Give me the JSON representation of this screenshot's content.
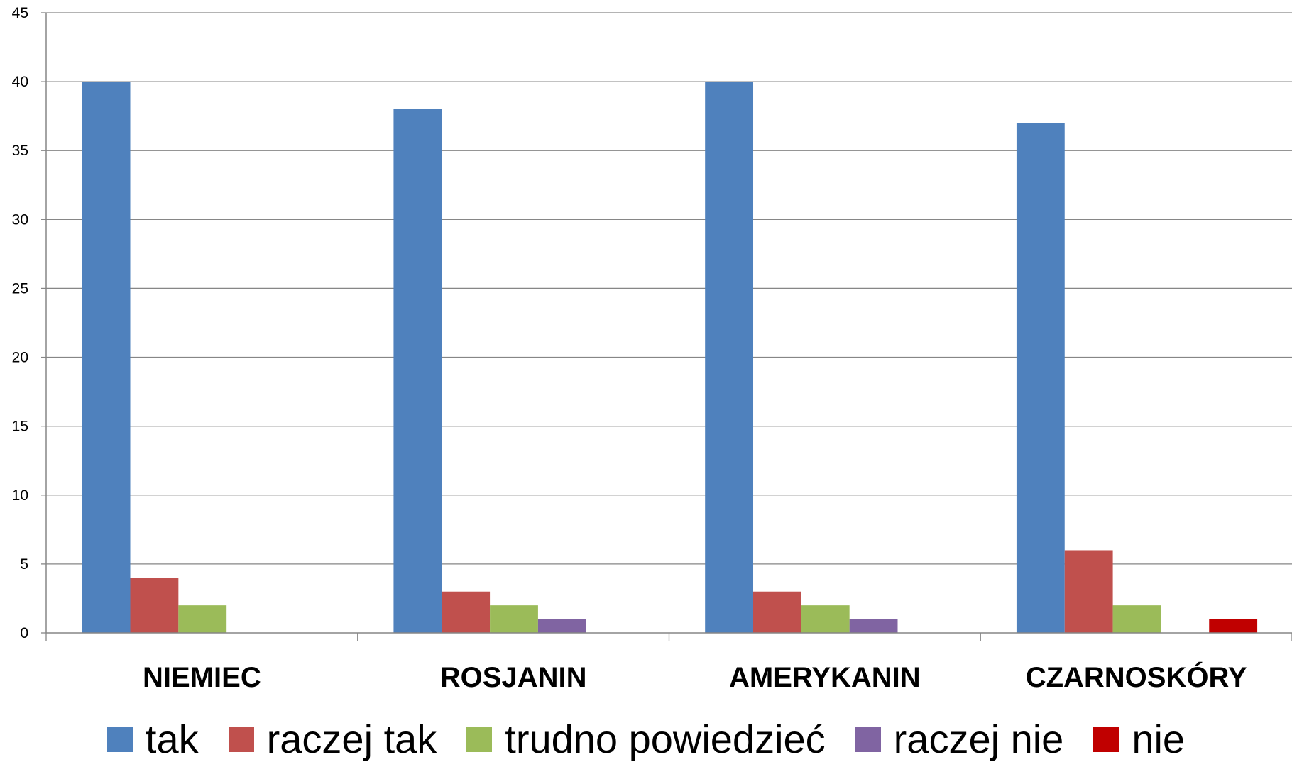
{
  "chart_data": {
    "type": "bar",
    "categories": [
      "NIEMIEC",
      "ROSJANIN",
      "AMERYKANIN",
      "CZARNOSKÓRY"
    ],
    "series": [
      {
        "name": "tak",
        "color": "#4f81bd",
        "values": [
          40,
          38,
          40,
          37
        ]
      },
      {
        "name": "raczej tak",
        "color": "#c0504d",
        "values": [
          4,
          3,
          3,
          6
        ]
      },
      {
        "name": "trudno powiedzieć",
        "color": "#9bbb59",
        "values": [
          2,
          2,
          2,
          2
        ]
      },
      {
        "name": "raczej nie",
        "color": "#8064a2",
        "values": [
          0,
          1,
          1,
          0
        ]
      },
      {
        "name": "nie",
        "color": "#c00000",
        "values": [
          0,
          0,
          0,
          1
        ]
      }
    ],
    "y_ticks": [
      "0",
      "5",
      "10",
      "15",
      "20",
      "25",
      "30",
      "35",
      "40",
      "45"
    ],
    "ylim": [
      0,
      45
    ],
    "grid": true,
    "legend_position": "bottom"
  }
}
